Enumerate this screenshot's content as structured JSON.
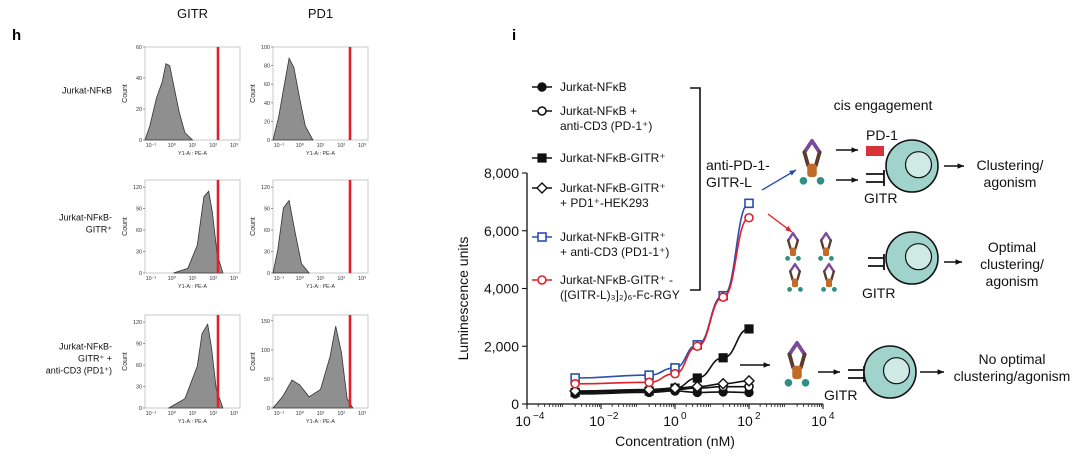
{
  "panel_h": {
    "letter": "h",
    "columns": [
      "GITR",
      "PD1"
    ],
    "rows": [
      {
        "label_lines": [
          "Jurkat-NFκB"
        ],
        "ylabel": "Count",
        "yticks": [
          [
            "0",
            "20",
            "40",
            "60"
          ],
          [
            "0",
            "20",
            "40",
            "60",
            "80",
            "100"
          ]
        ],
        "ymax": [
          60,
          100
        ]
      },
      {
        "label_lines": [
          "Jurkat-NFκB-",
          "GITR⁺"
        ],
        "ylabel": "Count",
        "yticks": [
          [
            "0",
            "30",
            "60",
            "90",
            "120"
          ],
          [
            "0",
            "30",
            "60",
            "90",
            "120"
          ]
        ],
        "ymax": [
          130,
          130
        ]
      },
      {
        "label_lines": [
          "Jurkat-NFκB-",
          "GITR⁺ +",
          "anti-CD3 (PD1⁺)"
        ],
        "ylabel": "Count",
        "yticks": [
          [
            "0",
            "30",
            "60",
            "90",
            "120"
          ],
          [
            "0",
            "50",
            "100",
            "150"
          ]
        ],
        "ymax": [
          130,
          160
        ]
      }
    ],
    "xlabel": "Y1-A:: PE-A",
    "xticks": [
      "10⁻¹",
      "10⁰",
      "10¹",
      "10²",
      "10³"
    ],
    "gate_color": "#e0202a"
  },
  "chart_data": {
    "type": "line",
    "panel_letter": "i",
    "xlabel": "Concentration (nM)",
    "ylabel": "Luminescence units",
    "xscale": "log",
    "xlim": [
      0.0001,
      10000
    ],
    "ylim": [
      0,
      8000
    ],
    "xtick_bases": [
      "10",
      "10",
      "10",
      "10",
      "10"
    ],
    "xtick_exps": [
      "−4",
      "−2",
      "0",
      "2",
      "4"
    ],
    "yticks": [
      "0",
      "2,000",
      "4,000",
      "6,000",
      "8,000"
    ],
    "series": [
      {
        "name": "Jurkat-NFκB",
        "color": "#111111",
        "marker": "circle-filled",
        "x": [
          0.002,
          0.2,
          1,
          4,
          20,
          100
        ],
        "y": [
          350,
          400,
          450,
          400,
          420,
          400
        ]
      },
      {
        "name": "Jurkat-NFκB + anti-CD3 (PD-1⁺)",
        "color": "#111111",
        "marker": "circle-open",
        "x": [
          0.002,
          0.2,
          1,
          4,
          20,
          100
        ],
        "y": [
          400,
          450,
          500,
          550,
          600,
          600
        ]
      },
      {
        "name": "Jurkat-NFκB-GITR⁺",
        "color": "#111111",
        "marker": "square-filled",
        "x": [
          0.002,
          0.2,
          1,
          4,
          20,
          100
        ],
        "y": [
          400,
          450,
          550,
          900,
          1600,
          2600
        ]
      },
      {
        "name": "Jurkat-NFκB-GITR⁺ + PD1⁺-HEK293",
        "color": "#111111",
        "marker": "diamond-open",
        "x": [
          0.002,
          0.2,
          1,
          4,
          20,
          100
        ],
        "y": [
          450,
          500,
          550,
          600,
          700,
          800
        ]
      },
      {
        "name": "Jurkat-NFκB-GITR⁺ + anti-CD3 (PD1-1⁺)",
        "color": "#2a4fb0",
        "marker": "square-open",
        "x": [
          0.002,
          0.2,
          1,
          4,
          20,
          100
        ],
        "y": [
          900,
          1000,
          1250,
          2050,
          3750,
          6950
        ]
      },
      {
        "name": "Jurkat-NFκB-GITR⁺ - ([GITR-L)₃]₂)₆-Fc-RGY",
        "color": "#e0202a",
        "marker": "circle-open",
        "x": [
          0.002,
          0.2,
          1,
          4,
          20,
          100
        ],
        "y": [
          700,
          750,
          1050,
          2000,
          3700,
          6450
        ]
      }
    ],
    "legend": {
      "placement": "top-left",
      "entries": [
        {
          "lines": [
            "Jurkat-NFκB"
          ]
        },
        {
          "lines": [
            "Jurkat-NFκB +",
            "anti-CD3 (PD-1⁺)"
          ]
        },
        {
          "lines": [
            "Jurkat-NFκB-GITR⁺"
          ]
        },
        {
          "lines": [
            "Jurkat-NFκB-GITR⁺",
            "+ PD1⁺-HEK293"
          ]
        },
        {
          "lines": [
            "Jurkat-NFκB-GITR⁺",
            "+ anti-CD3 (PD1-1⁺)"
          ]
        },
        {
          "lines": [
            "Jurkat-NFκB-GITR⁺ -",
            "([GITR-L)₃]₂)₆-Fc-RGY"
          ]
        }
      ]
    },
    "annotations": {
      "bracket_label": [
        "anti-PD-1-",
        "GITR-L"
      ],
      "cis_engagement": "cis engagement",
      "pd1": "PD-1",
      "gitr": "GITR",
      "outcome_1": [
        "Clustering/",
        "agonism"
      ],
      "outcome_2": [
        "Optimal",
        "clustering/",
        "agonism"
      ],
      "outcome_3": [
        "No optimal",
        "clustering/agonism"
      ]
    },
    "colors": {
      "blue": "#2a4fb0",
      "red": "#e0202a",
      "teal": "#2f8f83",
      "cell": "#9fd3cc",
      "antibody_dark": "#5a3a2a",
      "antibody_orange": "#c26a2a",
      "antibody_purple": "#7b4b9a"
    }
  }
}
